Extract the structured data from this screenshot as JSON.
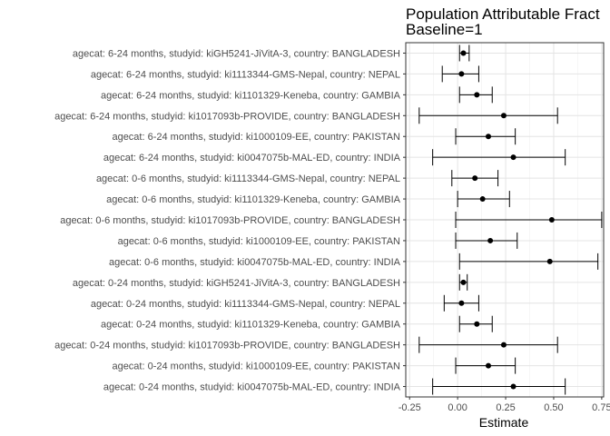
{
  "chart_data": {
    "type": "forest",
    "title": "Population Attributable Fract",
    "subtitle": "Baseline=1",
    "xlabel": "Estimate",
    "ylabel": "",
    "xlim": [
      -0.27,
      0.76
    ],
    "x_ticks": [
      -0.25,
      0.0,
      0.25,
      0.5,
      0.75
    ],
    "x_tick_labels": [
      "-0.25",
      "0.00",
      "0.25",
      "0.50",
      "0.75"
    ],
    "grid": true,
    "rows": [
      {
        "label": "agecat: 6-24 months, studyid: kiGH5241-JiVitA-3, country: BANGLADESH",
        "estimate": 0.03,
        "lower": 0.01,
        "upper": 0.06
      },
      {
        "label": "agecat: 6-24 months, studyid: ki1113344-GMS-Nepal, country: NEPAL",
        "estimate": 0.02,
        "lower": -0.08,
        "upper": 0.11
      },
      {
        "label": "agecat: 6-24 months, studyid: ki1101329-Keneba, country: GAMBIA",
        "estimate": 0.1,
        "lower": 0.01,
        "upper": 0.18
      },
      {
        "label": "agecat: 6-24 months, studyid: ki1017093b-PROVIDE, country: BANGLADESH",
        "estimate": 0.24,
        "lower": -0.2,
        "upper": 0.52
      },
      {
        "label": "agecat: 6-24 months, studyid: ki1000109-EE, country: PAKISTAN",
        "estimate": 0.16,
        "lower": -0.01,
        "upper": 0.3
      },
      {
        "label": "agecat: 6-24 months, studyid: ki0047075b-MAL-ED, country: INDIA",
        "estimate": 0.29,
        "lower": -0.13,
        "upper": 0.56
      },
      {
        "label": "agecat: 0-6 months, studyid: ki1113344-GMS-Nepal, country: NEPAL",
        "estimate": 0.09,
        "lower": -0.03,
        "upper": 0.21
      },
      {
        "label": "agecat: 0-6 months, studyid: ki1101329-Keneba, country: GAMBIA",
        "estimate": 0.13,
        "lower": 0.0,
        "upper": 0.27
      },
      {
        "label": "agecat: 0-6 months, studyid: ki1017093b-PROVIDE, country: BANGLADESH",
        "estimate": 0.49,
        "lower": -0.01,
        "upper": 0.75
      },
      {
        "label": "agecat: 0-6 months, studyid: ki1000109-EE, country: PAKISTAN",
        "estimate": 0.17,
        "lower": -0.01,
        "upper": 0.31
      },
      {
        "label": "agecat: 0-6 months, studyid: ki0047075b-MAL-ED, country: INDIA",
        "estimate": 0.48,
        "lower": 0.01,
        "upper": 0.73
      },
      {
        "label": "agecat: 0-24 months, studyid: kiGH5241-JiVitA-3, country: BANGLADESH",
        "estimate": 0.03,
        "lower": 0.01,
        "upper": 0.05
      },
      {
        "label": "agecat: 0-24 months, studyid: ki1113344-GMS-Nepal, country: NEPAL",
        "estimate": 0.02,
        "lower": -0.07,
        "upper": 0.11
      },
      {
        "label": "agecat: 0-24 months, studyid: ki1101329-Keneba, country: GAMBIA",
        "estimate": 0.1,
        "lower": 0.01,
        "upper": 0.18
      },
      {
        "label": "agecat: 0-24 months, studyid: ki1017093b-PROVIDE, country: BANGLADESH",
        "estimate": 0.24,
        "lower": -0.2,
        "upper": 0.52
      },
      {
        "label": "agecat: 0-24 months, studyid: ki1000109-EE, country: PAKISTAN",
        "estimate": 0.16,
        "lower": -0.01,
        "upper": 0.3
      },
      {
        "label": "agecat: 0-24 months, studyid: ki0047075b-MAL-ED, country: INDIA",
        "estimate": 0.29,
        "lower": -0.13,
        "upper": 0.56
      }
    ]
  }
}
